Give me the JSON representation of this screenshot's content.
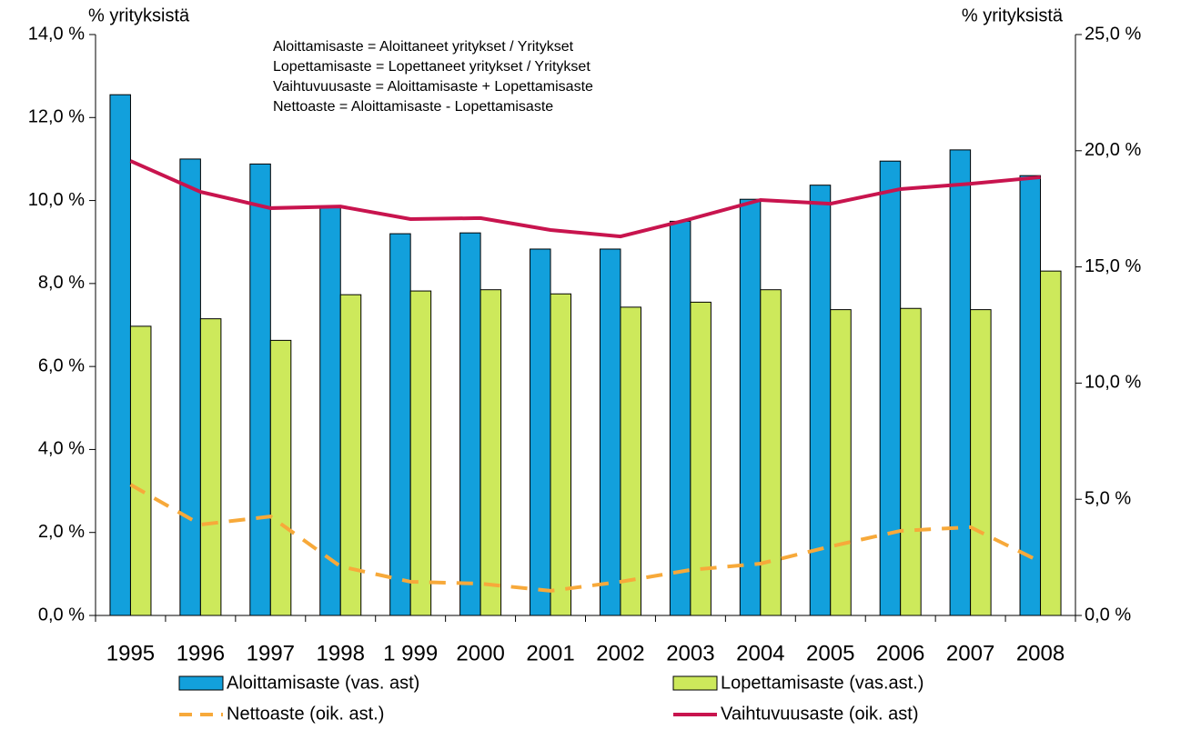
{
  "chart_data": {
    "type": "bar",
    "y_label": "% yrityksistä",
    "y2_label": "% yrityksistä",
    "annotations": [
      "Aloittamisaste = Aloittaneet yritykset / Yritykset",
      "Lopettamisaste = Lopettaneet yritykset / Yritykset",
      "Vaihtuvuusaste = Aloittamisaste + Lopettamisaste",
      "Nettoaste = Aloittamisaste - Lopettamisaste"
    ],
    "categories": [
      "1995",
      "1996",
      "1997",
      "1998",
      "1 999",
      "2000",
      "2001",
      "2002",
      "2003",
      "2004",
      "2005",
      "2006",
      "2007",
      "2008"
    ],
    "series": [
      {
        "name": "Aloittamisaste (vas. ast)",
        "type": "bar",
        "color": "#12a0dc",
        "values": [
          12.55,
          11.0,
          10.88,
          9.85,
          9.2,
          9.22,
          8.83,
          8.83,
          9.5,
          10.03,
          10.37,
          10.95,
          11.22,
          10.6
        ]
      },
      {
        "name": "Lopettamisaste (vas.ast.)",
        "type": "bar",
        "color": "#cde95b",
        "values": [
          6.97,
          7.15,
          6.63,
          7.73,
          7.82,
          7.85,
          7.75,
          7.43,
          7.55,
          7.85,
          7.37,
          7.4,
          7.37,
          8.3
        ]
      },
      {
        "name": "Nettoaste (oik. ast.)",
        "type": "line",
        "style": "dashed",
        "axis": "y2",
        "color": "#f7a93a",
        "values": [
          5.63,
          3.91,
          4.26,
          2.11,
          1.45,
          1.37,
          1.06,
          1.45,
          1.96,
          2.23,
          2.97,
          3.64,
          3.8,
          2.31
        ]
      },
      {
        "name": "Vaihtuvuusaste (oik. ast)",
        "type": "line",
        "style": "solid",
        "axis": "y2",
        "color": "#c8144e",
        "values": [
          19.56,
          18.23,
          17.53,
          17.6,
          17.06,
          17.1,
          16.59,
          16.31,
          17.06,
          17.88,
          17.72,
          18.35,
          18.58,
          18.86
        ]
      }
    ],
    "ylim": [
      0,
      14
    ],
    "yticks": [
      {
        "value": 0,
        "label": "0,0 %"
      },
      {
        "value": 2,
        "label": "2,0 %"
      },
      {
        "value": 4,
        "label": "4,0 %"
      },
      {
        "value": 6,
        "label": "6,0 %"
      },
      {
        "value": 8,
        "label": "8,0 %"
      },
      {
        "value": 10,
        "label": "10,0 %"
      },
      {
        "value": 12,
        "label": "12,0 %"
      },
      {
        "value": 14,
        "label": "14,0 %"
      }
    ],
    "y2lim": [
      0,
      25
    ],
    "y2ticks": [
      {
        "value": 0,
        "label": "0,0 %"
      },
      {
        "value": 5,
        "label": "5,0 %"
      },
      {
        "value": 10,
        "label": "10,0 %"
      },
      {
        "value": 15,
        "label": "15,0 %"
      },
      {
        "value": 20,
        "label": "20,0 %"
      },
      {
        "value": 25,
        "label": "25,0 %"
      }
    ],
    "grid": false
  }
}
